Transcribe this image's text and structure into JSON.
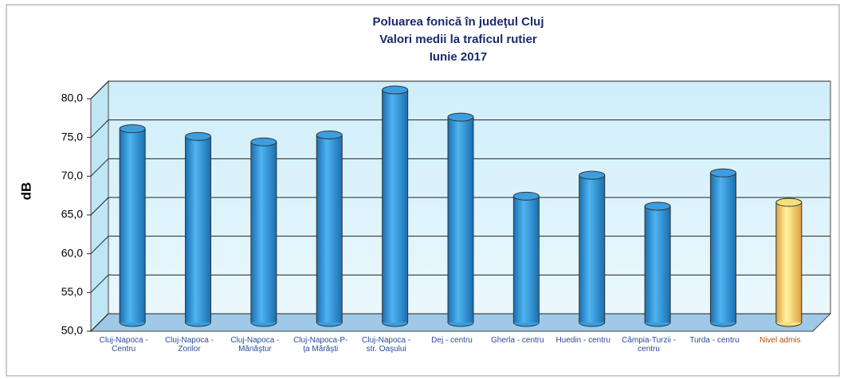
{
  "chart_data": {
    "type": "bar",
    "title": [
      "Poluarea fonică în judeţul Cluj",
      "Valori medii la traficul rutier",
      "Iunie 2017"
    ],
    "y_label": "dB",
    "categories": [
      "Cluj-Napoca - Centru",
      "Cluj-Napoca - Zorilor",
      "Cluj-Napoca - Mănăştur",
      "Cluj-Napoca-P-ţa Mărăşti",
      "Cluj-Napoca - str. Oaşului",
      "Dej - centru",
      "Gherla - centru",
      "Huedin - centru",
      "Câmpia-Turzii - centru",
      "Turda - centru",
      "Nivel admis"
    ],
    "values": [
      75.0,
      74.0,
      73.3,
      74.2,
      80.0,
      76.5,
      66.3,
      69.0,
      65.0,
      69.3,
      65.5
    ],
    "colors": [
      "#3b9ee0",
      "#3b9ee0",
      "#3b9ee0",
      "#3b9ee0",
      "#3b9ee0",
      "#3b9ee0",
      "#3b9ee0",
      "#3b9ee0",
      "#3b9ee0",
      "#3b9ee0",
      "#f3e27a"
    ],
    "ylim": [
      50,
      80
    ],
    "yticks": [
      {
        "value": 50,
        "label": "50,0"
      },
      {
        "value": 55,
        "label": "55,0"
      },
      {
        "value": 60,
        "label": "60,0"
      },
      {
        "value": 65,
        "label": "65,0"
      },
      {
        "value": 70,
        "label": "70,0"
      },
      {
        "value": 75,
        "label": "75,0"
      },
      {
        "value": 80,
        "label": "80,0"
      }
    ],
    "grid": true
  }
}
